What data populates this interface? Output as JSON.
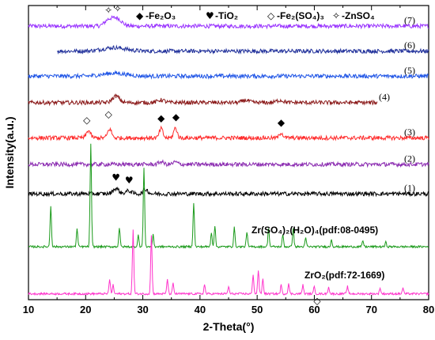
{
  "chart_data": {
    "type": "line",
    "title": "",
    "xlabel": "2-Theta(°)",
    "ylabel": "Intensity(a.u.)",
    "xlim": [
      10,
      80
    ],
    "ylim": [
      0,
      100
    ],
    "xticks": [
      "10",
      "20",
      "30",
      "40",
      "50",
      "60",
      "70",
      "80"
    ],
    "y_tick_labels": false,
    "legend": {
      "placement": "top",
      "entries": [
        {
          "glyph": "◆",
          "label": "-Fe₂O₃",
          "icon": "filled-diamond"
        },
        {
          "glyph": "♥",
          "label": "-TiO₂",
          "icon": "heart"
        },
        {
          "glyph": "◇",
          "label": "-Fe₂(SO₄)₃",
          "icon": "open-diamond"
        },
        {
          "glyph": "✧",
          "label": "-ZnSO₄",
          "icon": "four-point-star"
        }
      ]
    },
    "series": [
      {
        "name": "(7)",
        "color": "#9933ff",
        "x_start": 10,
        "x_end": 80,
        "offset": 93,
        "peaks": [
          {
            "x": 24.0,
            "h": 2.0,
            "w": 0.7
          },
          {
            "x": 25.5,
            "h": 2.6,
            "w": 0.8
          }
        ]
      },
      {
        "name": "(6)",
        "color": "#1f2f9a",
        "x_start": 15,
        "x_end": 80,
        "offset": 84.5,
        "peaks": [
          {
            "x": 25.0,
            "h": 1.2,
            "w": 2.0
          }
        ]
      },
      {
        "name": "(5)",
        "color": "#1f55e6",
        "x_start": 10,
        "x_end": 80,
        "offset": 76,
        "peaks": [
          {
            "x": 25.0,
            "h": 1.0,
            "w": 2.0
          }
        ]
      },
      {
        "name": "(4)",
        "color": "#8b1a1a",
        "x_start": 10,
        "x_end": 71,
        "offset": 67,
        "peaks": [
          {
            "x": 25.3,
            "h": 2.2,
            "w": 0.6
          },
          {
            "x": 33.2,
            "h": 0.9,
            "w": 0.6
          },
          {
            "x": 48.0,
            "h": 0.8,
            "w": 0.6
          },
          {
            "x": 54.0,
            "h": 0.8,
            "w": 0.6
          }
        ]
      },
      {
        "name": "(3)",
        "color": "#ff2a2a",
        "x_start": 10,
        "x_end": 80,
        "offset": 55,
        "peaks": [
          {
            "x": 20.5,
            "h": 2.5,
            "w": 0.35
          },
          {
            "x": 24.2,
            "h": 3.0,
            "w": 0.35
          },
          {
            "x": 33.2,
            "h": 3.2,
            "w": 0.3
          },
          {
            "x": 35.7,
            "h": 3.4,
            "w": 0.3
          },
          {
            "x": 54.2,
            "h": 1.8,
            "w": 0.3
          }
        ]
      },
      {
        "name": "(2)",
        "color": "#8a2ab0",
        "x_start": 10,
        "x_end": 80,
        "offset": 46,
        "peaks": [
          {
            "x": 33.2,
            "h": 0.9,
            "w": 0.4
          },
          {
            "x": 35.7,
            "h": 0.8,
            "w": 0.4
          }
        ]
      },
      {
        "name": "(1)",
        "color": "#000000",
        "x_start": 10,
        "x_end": 80,
        "offset": 36,
        "peaks": [
          {
            "x": 25.3,
            "h": 1.8,
            "w": 0.5
          },
          {
            "x": 27.5,
            "h": 1.0,
            "w": 0.5
          },
          {
            "x": 30.5,
            "h": 1.5,
            "w": 0.4
          }
        ]
      },
      {
        "name": "Zr(SO₄)₂(H₂O)₄(pdf:08-0495)",
        "color": "#1a9a1a",
        "x_start": 10,
        "x_end": 80,
        "offset": 18,
        "peaks": [
          {
            "x": 13.9,
            "h": 14,
            "w": 0.12
          },
          {
            "x": 18.5,
            "h": 6,
            "w": 0.12
          },
          {
            "x": 20.9,
            "h": 35,
            "w": 0.12
          },
          {
            "x": 25.9,
            "h": 6.5,
            "w": 0.12
          },
          {
            "x": 29.2,
            "h": 4,
            "w": 0.12
          },
          {
            "x": 30.2,
            "h": 27,
            "w": 0.12
          },
          {
            "x": 31.8,
            "h": 4,
            "w": 0.12
          },
          {
            "x": 38.9,
            "h": 15,
            "w": 0.12
          },
          {
            "x": 42.0,
            "h": 5,
            "w": 0.12
          },
          {
            "x": 42.6,
            "h": 7,
            "w": 0.12
          },
          {
            "x": 46.0,
            "h": 6.5,
            "w": 0.12
          },
          {
            "x": 48.2,
            "h": 5,
            "w": 0.12
          },
          {
            "x": 52.0,
            "h": 6.5,
            "w": 0.12
          },
          {
            "x": 54.5,
            "h": 4,
            "w": 0.12
          },
          {
            "x": 56.3,
            "h": 6.5,
            "w": 0.12
          },
          {
            "x": 58.5,
            "h": 3,
            "w": 0.12
          },
          {
            "x": 63.0,
            "h": 2.5,
            "w": 0.12
          },
          {
            "x": 68.5,
            "h": 2,
            "w": 0.12
          },
          {
            "x": 72.5,
            "h": 1.5,
            "w": 0.12
          }
        ]
      },
      {
        "name": "ZrO₂(pdf:72-1669)",
        "color": "#ff33cc",
        "x_start": 10,
        "x_end": 80,
        "offset": 2,
        "peaks": [
          {
            "x": 24.2,
            "h": 5,
            "w": 0.12
          },
          {
            "x": 24.8,
            "h": 3,
            "w": 0.12
          },
          {
            "x": 28.3,
            "h": 22,
            "w": 0.12
          },
          {
            "x": 31.5,
            "h": 20,
            "w": 0.12
          },
          {
            "x": 34.3,
            "h": 5,
            "w": 0.12
          },
          {
            "x": 35.3,
            "h": 3.5,
            "w": 0.12
          },
          {
            "x": 40.8,
            "h": 3,
            "w": 0.12
          },
          {
            "x": 45.0,
            "h": 2.5,
            "w": 0.12
          },
          {
            "x": 49.3,
            "h": 6.5,
            "w": 0.12
          },
          {
            "x": 50.2,
            "h": 8,
            "w": 0.12
          },
          {
            "x": 51.0,
            "h": 5,
            "w": 0.12
          },
          {
            "x": 54.2,
            "h": 3,
            "w": 0.12
          },
          {
            "x": 55.5,
            "h": 3.5,
            "w": 0.12
          },
          {
            "x": 58.0,
            "h": 3,
            "w": 0.12
          },
          {
            "x": 60.0,
            "h": 2.5,
            "w": 0.12
          },
          {
            "x": 62.5,
            "h": 2.5,
            "w": 0.12
          },
          {
            "x": 65.8,
            "h": 2.5,
            "w": 0.12
          },
          {
            "x": 71.5,
            "h": 2,
            "w": 0.12
          },
          {
            "x": 75.5,
            "h": 2,
            "w": 0.12
          }
        ]
      }
    ],
    "annotations": [
      {
        "glyph": "✧",
        "x": 24.0,
        "y": 97.3,
        "icon": "four-point-star"
      },
      {
        "glyph": "✧",
        "x": 25.6,
        "y": 97.9,
        "icon": "four-point-star"
      },
      {
        "glyph": "◇",
        "x": 20.2,
        "y": 60.0,
        "icon": "open-diamond"
      },
      {
        "glyph": "◇",
        "x": 24.0,
        "y": 62.0,
        "icon": "open-diamond"
      },
      {
        "glyph": "◆",
        "x": 33.2,
        "y": 60.6,
        "icon": "filled-diamond"
      },
      {
        "glyph": "◆",
        "x": 35.8,
        "y": 61.0,
        "icon": "filled-diamond"
      },
      {
        "glyph": "◆",
        "x": 54.2,
        "y": 59.2,
        "icon": "filled-diamond"
      },
      {
        "glyph": "♥",
        "x": 25.3,
        "y": 40.5,
        "icon": "heart"
      },
      {
        "glyph": "♥",
        "x": 27.6,
        "y": 39.5,
        "icon": "heart"
      },
      {
        "glyph": "◇",
        "x": 60.5,
        "y": -1.5,
        "icon": "open-diamond"
      }
    ]
  }
}
